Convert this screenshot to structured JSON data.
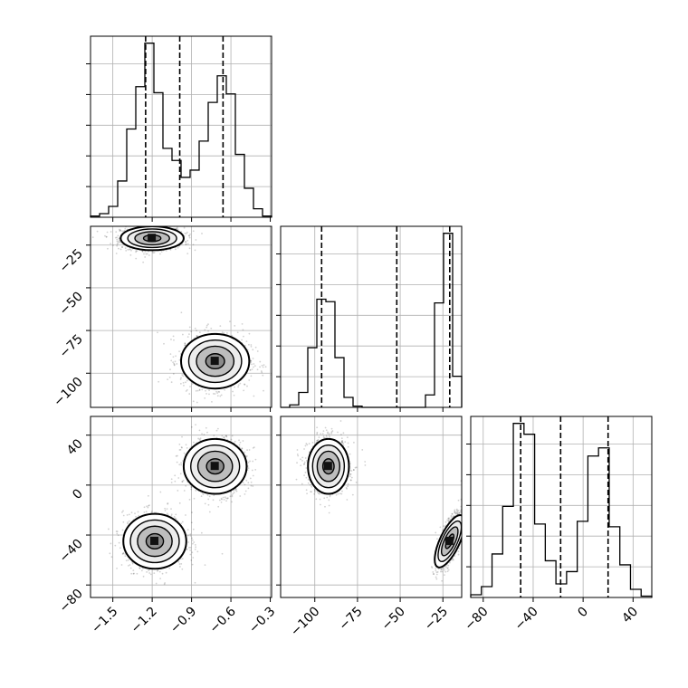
{
  "chart_data": {
    "type": "corner",
    "parameters": [
      {
        "axis_range": [
          -1.67,
          -0.29
        ],
        "tick_labels": [
          "-1.5",
          "-1.2",
          "-0.9",
          "-0.6",
          "-0.3"
        ],
        "tick_values": [
          -1.5,
          -1.2,
          -0.9,
          -0.6,
          -0.3
        ],
        "quantiles": [
          -1.25,
          -0.99,
          -0.66
        ],
        "histogram": [
          1,
          3,
          9,
          30,
          73,
          108,
          144,
          103,
          57,
          47,
          33,
          39,
          63,
          95,
          117,
          102,
          52,
          24,
          7,
          1
        ]
      },
      {
        "axis_range": [
          -120,
          -14
        ],
        "tick_labels": [
          "-100",
          "-75",
          "-50",
          "-25"
        ],
        "tick_values": [
          -100,
          -75,
          -50,
          -25
        ],
        "quantiles": [
          -96,
          -52,
          -21
        ],
        "histogram": [
          0,
          2,
          12,
          48,
          87,
          85,
          40,
          8,
          1,
          0,
          0,
          0,
          0,
          0,
          0,
          0,
          10,
          84,
          140,
          25
        ]
      },
      {
        "axis_range": [
          -90,
          55
        ],
        "tick_labels": [
          "-80",
          "-40",
          "0",
          "40"
        ],
        "tick_values": [
          -80,
          -40,
          0,
          40
        ],
        "quantiles": [
          -50,
          -18,
          20
        ],
        "histogram": [
          2,
          8,
          32,
          67,
          128,
          120,
          54,
          27,
          10,
          19,
          56,
          104,
          110,
          52,
          24,
          6,
          1
        ]
      }
    ],
    "clusters_2d": [
      {
        "panel": "p1_vs_p0",
        "centers": [
          {
            "x": -1.2,
            "y": -21,
            "sx": 0.12,
            "sy": 3.5
          },
          {
            "x": -0.72,
            "y": -93,
            "sx": 0.13,
            "sy": 8
          }
        ]
      },
      {
        "panel": "p2_vs_p0",
        "centers": [
          {
            "x": -1.18,
            "y": -45,
            "sx": 0.12,
            "sy": 11
          },
          {
            "x": -0.72,
            "y": 15,
            "sx": 0.12,
            "sy": 11
          }
        ]
      },
      {
        "panel": "p2_vs_p1",
        "centers": [
          {
            "x": -92,
            "y": 15,
            "sx": 6,
            "sy": 11,
            "rho": 0
          },
          {
            "x": -21,
            "y": -45,
            "sx": 3.5,
            "sy": 11,
            "rho": 0.7
          }
        ]
      }
    ],
    "grid": true
  }
}
